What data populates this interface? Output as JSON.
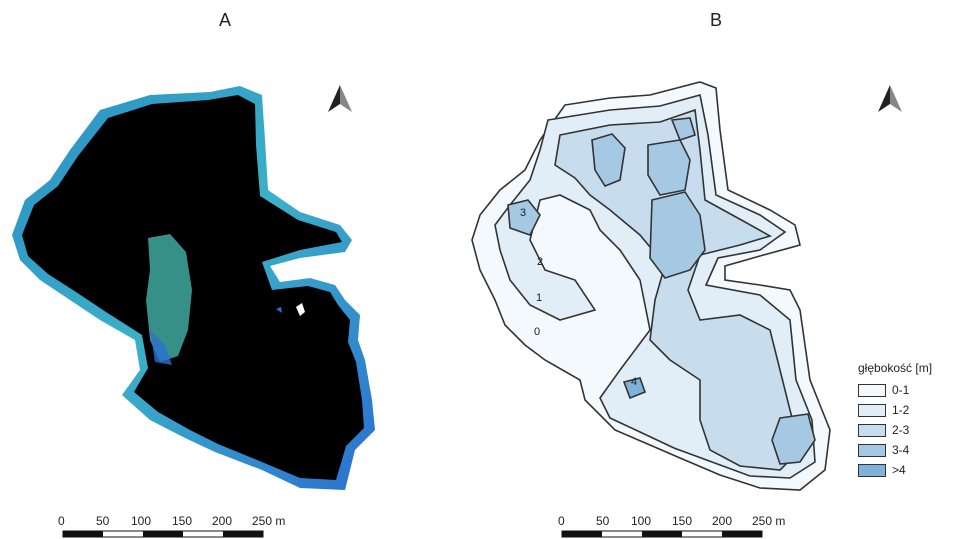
{
  "panels": {
    "a": {
      "letter": "A"
    },
    "b": {
      "letter": "B"
    }
  },
  "scalebar": {
    "ticks": [
      "0",
      "50",
      "100",
      "150",
      "200",
      "250 m"
    ]
  },
  "contour_labels": [
    "3",
    "2",
    "1",
    "0",
    "4"
  ],
  "legend": {
    "title": "głębokość [m]",
    "items": [
      {
        "label": "0-1",
        "color": "#f4f9fd"
      },
      {
        "label": "1-2",
        "color": "#e2eef7"
      },
      {
        "label": "2-3",
        "color": "#c7dded"
      },
      {
        "label": "3-4",
        "color": "#a6c9e3"
      },
      {
        "label": ">4",
        "color": "#7fb2d8"
      }
    ]
  },
  "colors": {
    "water_dark": "#000000",
    "shore_cyan": "#3aa6c8",
    "shore_blue": "#2d6fd0",
    "reed_green": "#3fa9a0"
  }
}
